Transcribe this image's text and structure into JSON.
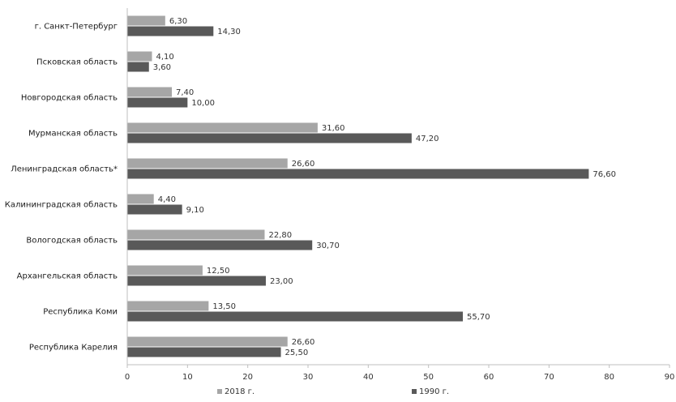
{
  "chart_data": {
    "type": "bar",
    "orientation": "horizontal",
    "categories": [
      "г. Санкт-Петербург",
      "Псковская область",
      "Новгородская область",
      "Мурманская область",
      "Ленинградская область*",
      "Калининградская область",
      "Вологодская область",
      "Архангельская область",
      "Республика Коми",
      "Республика Карелия"
    ],
    "series": [
      {
        "name": "2018 г.",
        "color": "#a6a6a6",
        "values": [
          6.3,
          4.1,
          7.4,
          31.6,
          26.6,
          4.4,
          22.8,
          12.5,
          13.5,
          26.6
        ],
        "labels": [
          "6,30",
          "4,10",
          "7,40",
          "31,60",
          "26,60",
          "4,40",
          "22,80",
          "12,50",
          "13,50",
          "26,60"
        ]
      },
      {
        "name": "1990 г.",
        "color": "#595959",
        "values": [
          14.3,
          3.6,
          10.0,
          47.2,
          76.6,
          9.1,
          30.7,
          23.0,
          55.7,
          25.5
        ],
        "labels": [
          "14,30",
          "3,60",
          "10,00",
          "47,20",
          "76,60",
          "9,10",
          "30,70",
          "23,00",
          "55,70",
          "25,50"
        ]
      }
    ],
    "xlim": [
      0,
      90
    ],
    "xticks": [
      0,
      10,
      20,
      30,
      40,
      50,
      60,
      70,
      80,
      90
    ],
    "title": "",
    "xlabel": "",
    "ylabel": "",
    "grid": false,
    "legend_position": "bottom"
  }
}
